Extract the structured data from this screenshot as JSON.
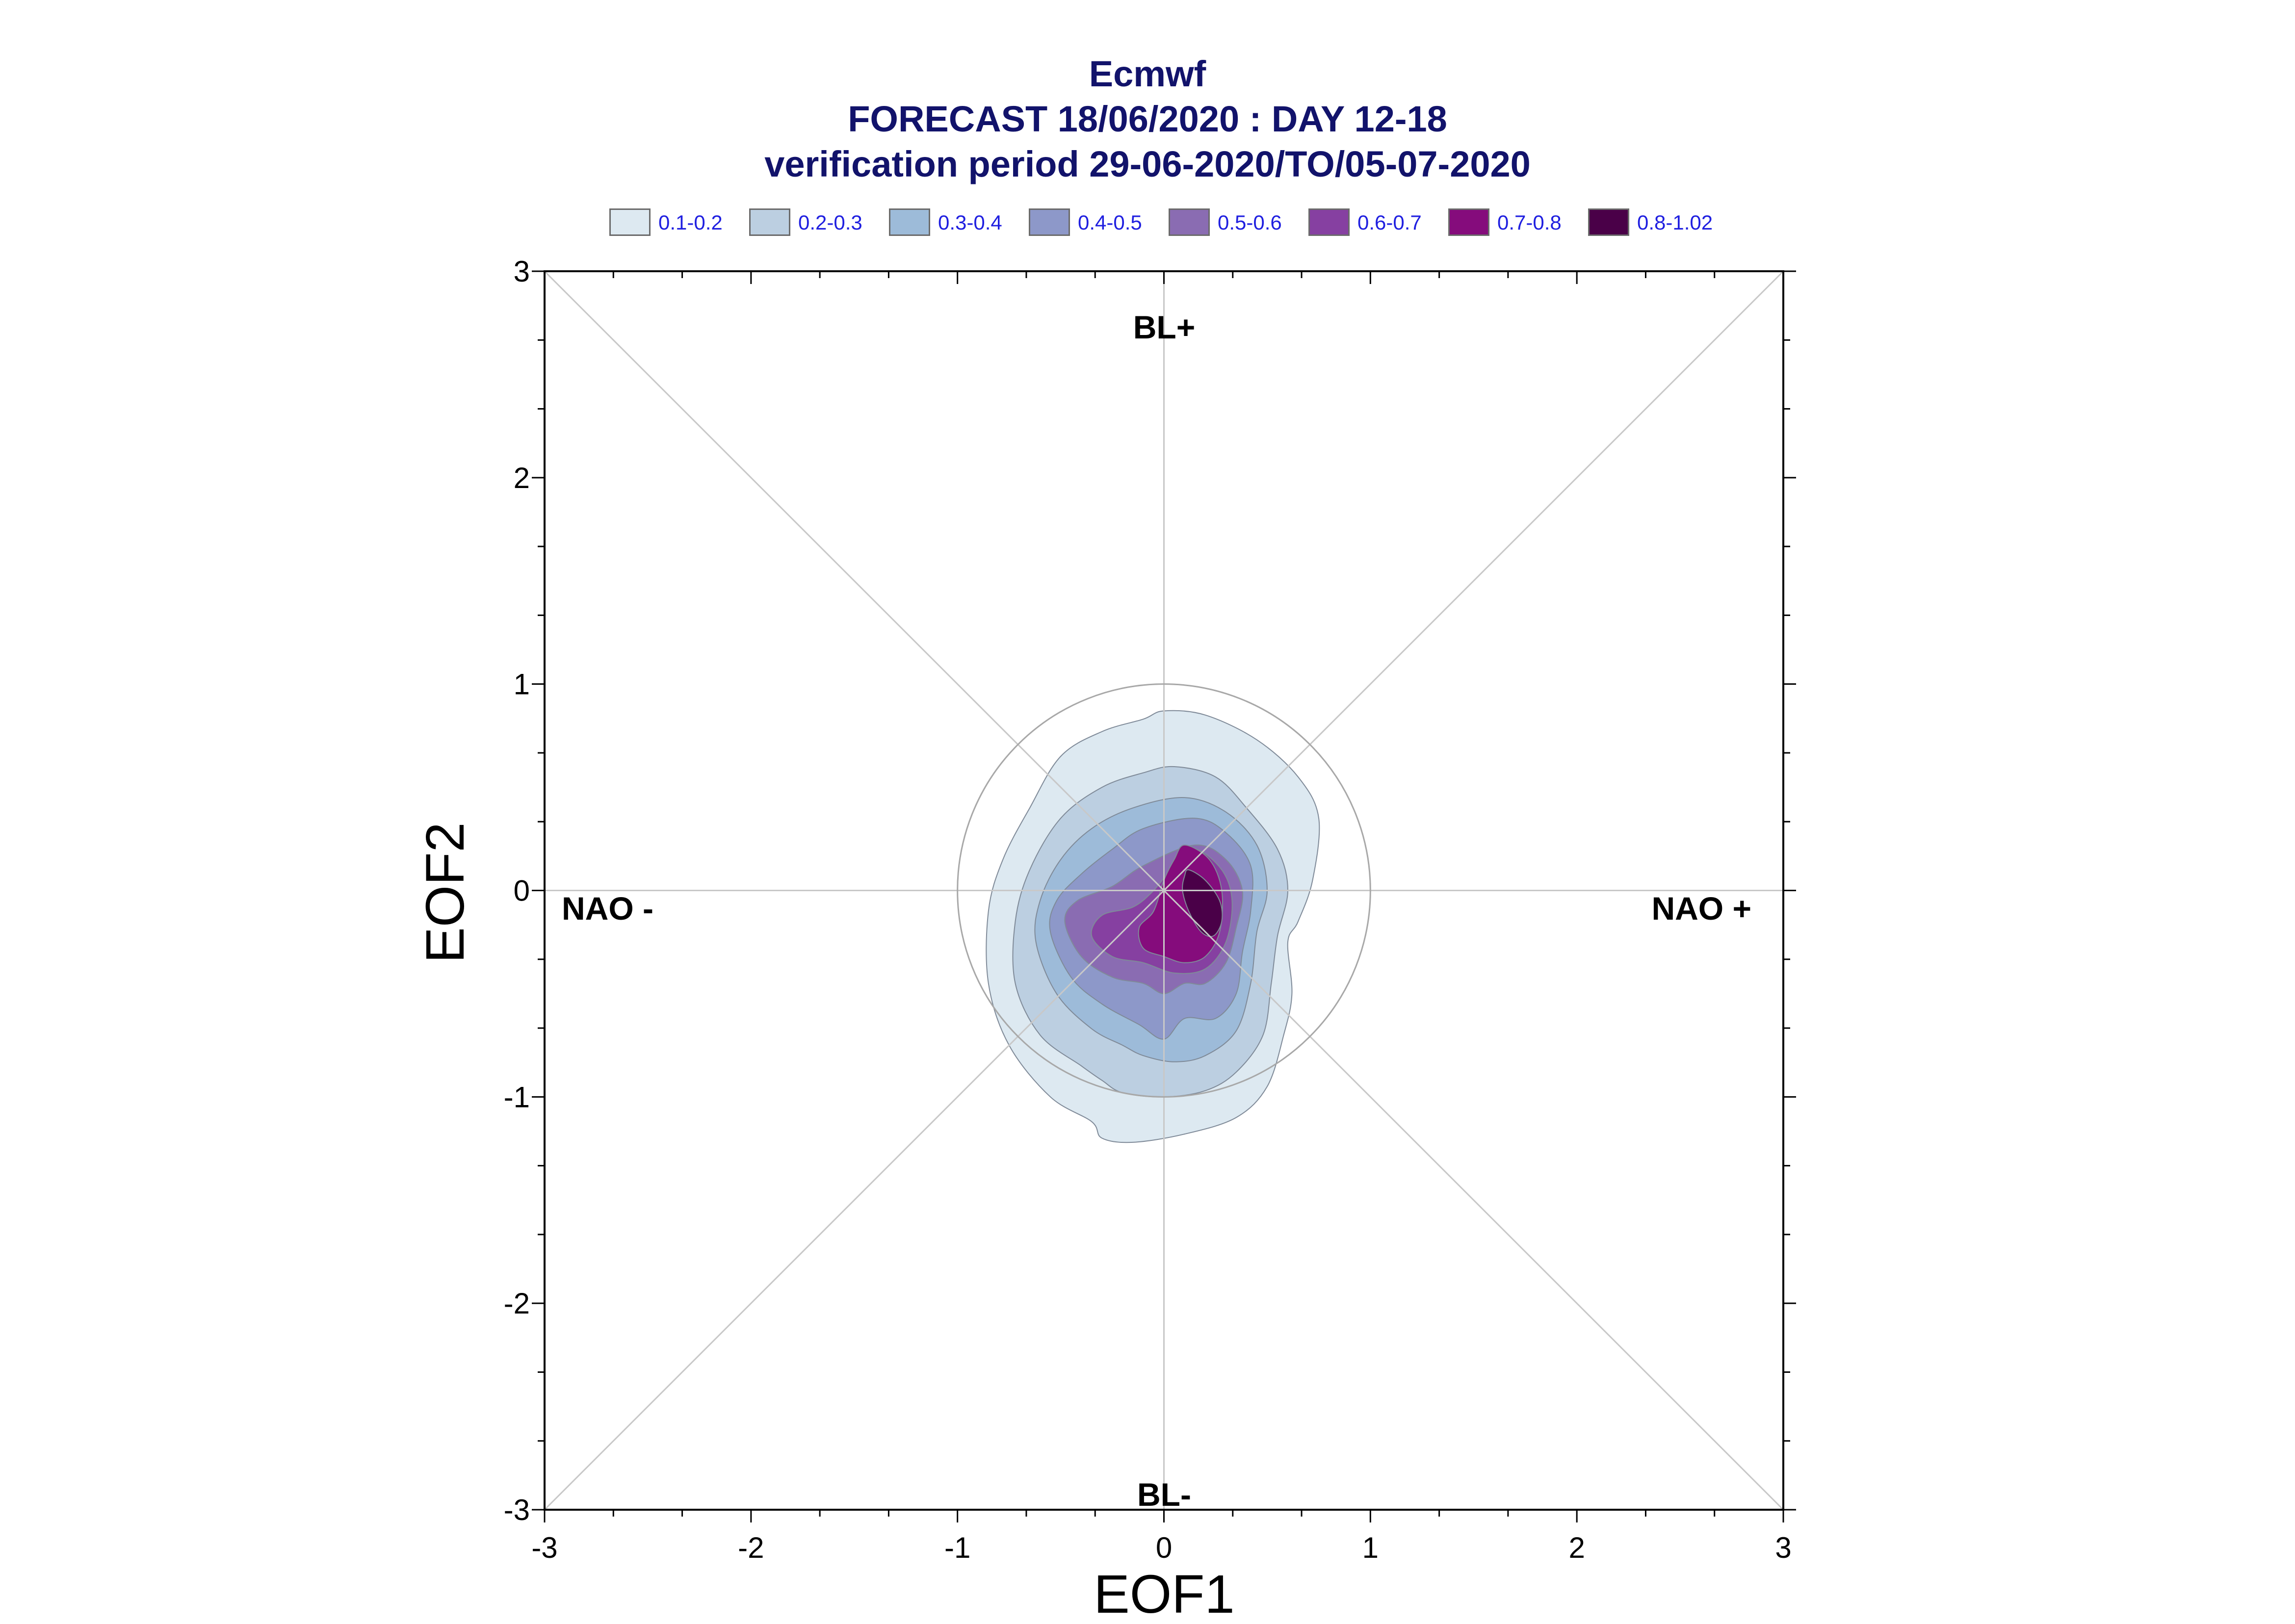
{
  "title": {
    "line1": "Ecmwf",
    "line2": "FORECAST 18/06/2020 : DAY 12-18",
    "line3": "verification period 29-06-2020/TO/05-07-2020"
  },
  "legend": [
    {
      "label": "0.1-0.2",
      "color": "#dde9f1"
    },
    {
      "label": "0.2-0.3",
      "color": "#bccfe1"
    },
    {
      "label": "0.3-0.4",
      "color": "#9dbbd9"
    },
    {
      "label": "0.4-0.5",
      "color": "#8d98c9"
    },
    {
      "label": "0.5-0.6",
      "color": "#8a6cb2"
    },
    {
      "label": "0.6-0.7",
      "color": "#8640a1"
    },
    {
      "label": "0.7-0.8",
      "color": "#850c7c"
    },
    {
      "label": "0.8-1.02",
      "color": "#4a0048"
    }
  ],
  "regimes": {
    "top": "BL+",
    "bottom": "BL-",
    "left": "NAO -",
    "right": "NAO +"
  },
  "chart_data": {
    "type": "contour",
    "xlabel": "EOF1",
    "ylabel": "EOF2",
    "xlim": [
      -3,
      3
    ],
    "ylim": [
      -3,
      3
    ],
    "xticks": [
      -3,
      -2,
      -1,
      0,
      1,
      2,
      3
    ],
    "yticks": [
      -3,
      -2,
      -1,
      0,
      1,
      2,
      3
    ],
    "reference_circle_radius": 1,
    "diagonals": true,
    "levels": [
      {
        "range": "0.1-0.2",
        "color": "#dde9f1",
        "x": [
          0.0,
          0.2,
          0.45,
          0.65,
          0.75,
          0.72,
          0.65,
          0.6,
          0.62,
          0.58,
          0.5,
          0.35,
          0.1,
          -0.15,
          -0.3,
          -0.35,
          -0.55,
          -0.75,
          -0.85,
          -0.85,
          -0.78,
          -0.65,
          -0.5,
          -0.3,
          -0.1
        ],
        "y": [
          0.87,
          0.85,
          0.73,
          0.55,
          0.35,
          0.05,
          -0.15,
          -0.25,
          -0.5,
          -0.7,
          -0.95,
          -1.1,
          -1.18,
          -1.22,
          -1.2,
          -1.12,
          -1.0,
          -0.75,
          -0.45,
          -0.1,
          0.15,
          0.4,
          0.65,
          0.77,
          0.83
        ]
      },
      {
        "range": "0.2-0.3",
        "color": "#bccfe1",
        "x": [
          0.05,
          0.25,
          0.4,
          0.55,
          0.6,
          0.55,
          0.52,
          0.48,
          0.35,
          0.2,
          0.0,
          -0.2,
          -0.3,
          -0.4,
          -0.6,
          -0.72,
          -0.72,
          -0.65,
          -0.5,
          -0.3,
          -0.1
        ],
        "y": [
          0.6,
          0.55,
          0.4,
          0.2,
          0.0,
          -0.22,
          -0.45,
          -0.7,
          -0.88,
          -0.97,
          -1.0,
          -0.98,
          -0.92,
          -0.85,
          -0.7,
          -0.45,
          -0.15,
          0.1,
          0.35,
          0.5,
          0.57
        ]
      },
      {
        "range": "0.3-0.4",
        "color": "#9dbbd9",
        "x": [
          0.1,
          0.3,
          0.45,
          0.5,
          0.45,
          0.42,
          0.35,
          0.2,
          0.05,
          -0.1,
          -0.2,
          -0.35,
          -0.52,
          -0.62,
          -0.6,
          -0.5,
          -0.35,
          -0.15
        ],
        "y": [
          0.45,
          0.38,
          0.22,
          0.0,
          -0.2,
          -0.45,
          -0.68,
          -0.8,
          -0.83,
          -0.8,
          -0.75,
          -0.67,
          -0.5,
          -0.25,
          -0.05,
          0.15,
          0.3,
          0.4
        ]
      },
      {
        "range": "0.4-0.5",
        "color": "#8d98c9",
        "x": [
          0.15,
          0.3,
          0.42,
          0.42,
          0.38,
          0.35,
          0.25,
          0.1,
          0.0,
          -0.12,
          -0.3,
          -0.45,
          -0.55,
          -0.52,
          -0.4,
          -0.25,
          -0.1
        ],
        "y": [
          0.35,
          0.28,
          0.12,
          -0.1,
          -0.3,
          -0.5,
          -0.62,
          -0.62,
          -0.72,
          -0.65,
          -0.55,
          -0.42,
          -0.2,
          -0.05,
          0.08,
          0.2,
          0.3
        ]
      },
      {
        "range": "0.5-0.6",
        "color": "#8a6cb2",
        "x": [
          0.15,
          0.3,
          0.38,
          0.35,
          0.3,
          0.2,
          0.1,
          0.0,
          -0.1,
          -0.25,
          -0.4,
          -0.48,
          -0.42,
          -0.25,
          -0.1
        ],
        "y": [
          0.22,
          0.15,
          0.0,
          -0.18,
          -0.35,
          -0.45,
          -0.45,
          -0.5,
          -0.45,
          -0.42,
          -0.32,
          -0.15,
          -0.05,
          0.02,
          0.12
        ]
      },
      {
        "range": "0.6-0.7",
        "color": "#8640a1",
        "x": [
          0.15,
          0.28,
          0.33,
          0.3,
          0.2,
          0.05,
          -0.1,
          -0.25,
          -0.35,
          -0.3,
          -0.15,
          -0.05,
          0.05
        ],
        "y": [
          0.2,
          0.1,
          -0.05,
          -0.25,
          -0.38,
          -0.4,
          -0.35,
          -0.32,
          -0.22,
          -0.12,
          -0.08,
          0.0,
          0.12
        ]
      },
      {
        "range": "0.7-0.8",
        "color": "#850c7c",
        "x": [
          0.1,
          0.22,
          0.28,
          0.27,
          0.2,
          0.1,
          0.0,
          -0.1,
          -0.12,
          -0.05,
          0.0,
          0.05
        ],
        "y": [
          0.22,
          0.15,
          0.0,
          -0.2,
          -0.32,
          -0.35,
          -0.32,
          -0.28,
          -0.18,
          -0.1,
          0.05,
          0.15
        ]
      },
      {
        "range": "0.8-1.02",
        "color": "#4a0048",
        "x": [
          0.12,
          0.2,
          0.27,
          0.28,
          0.24,
          0.18,
          0.12,
          0.09,
          0.1
        ],
        "y": [
          0.1,
          0.05,
          -0.05,
          -0.15,
          -0.22,
          -0.2,
          -0.1,
          0.0,
          0.07
        ]
      }
    ]
  }
}
